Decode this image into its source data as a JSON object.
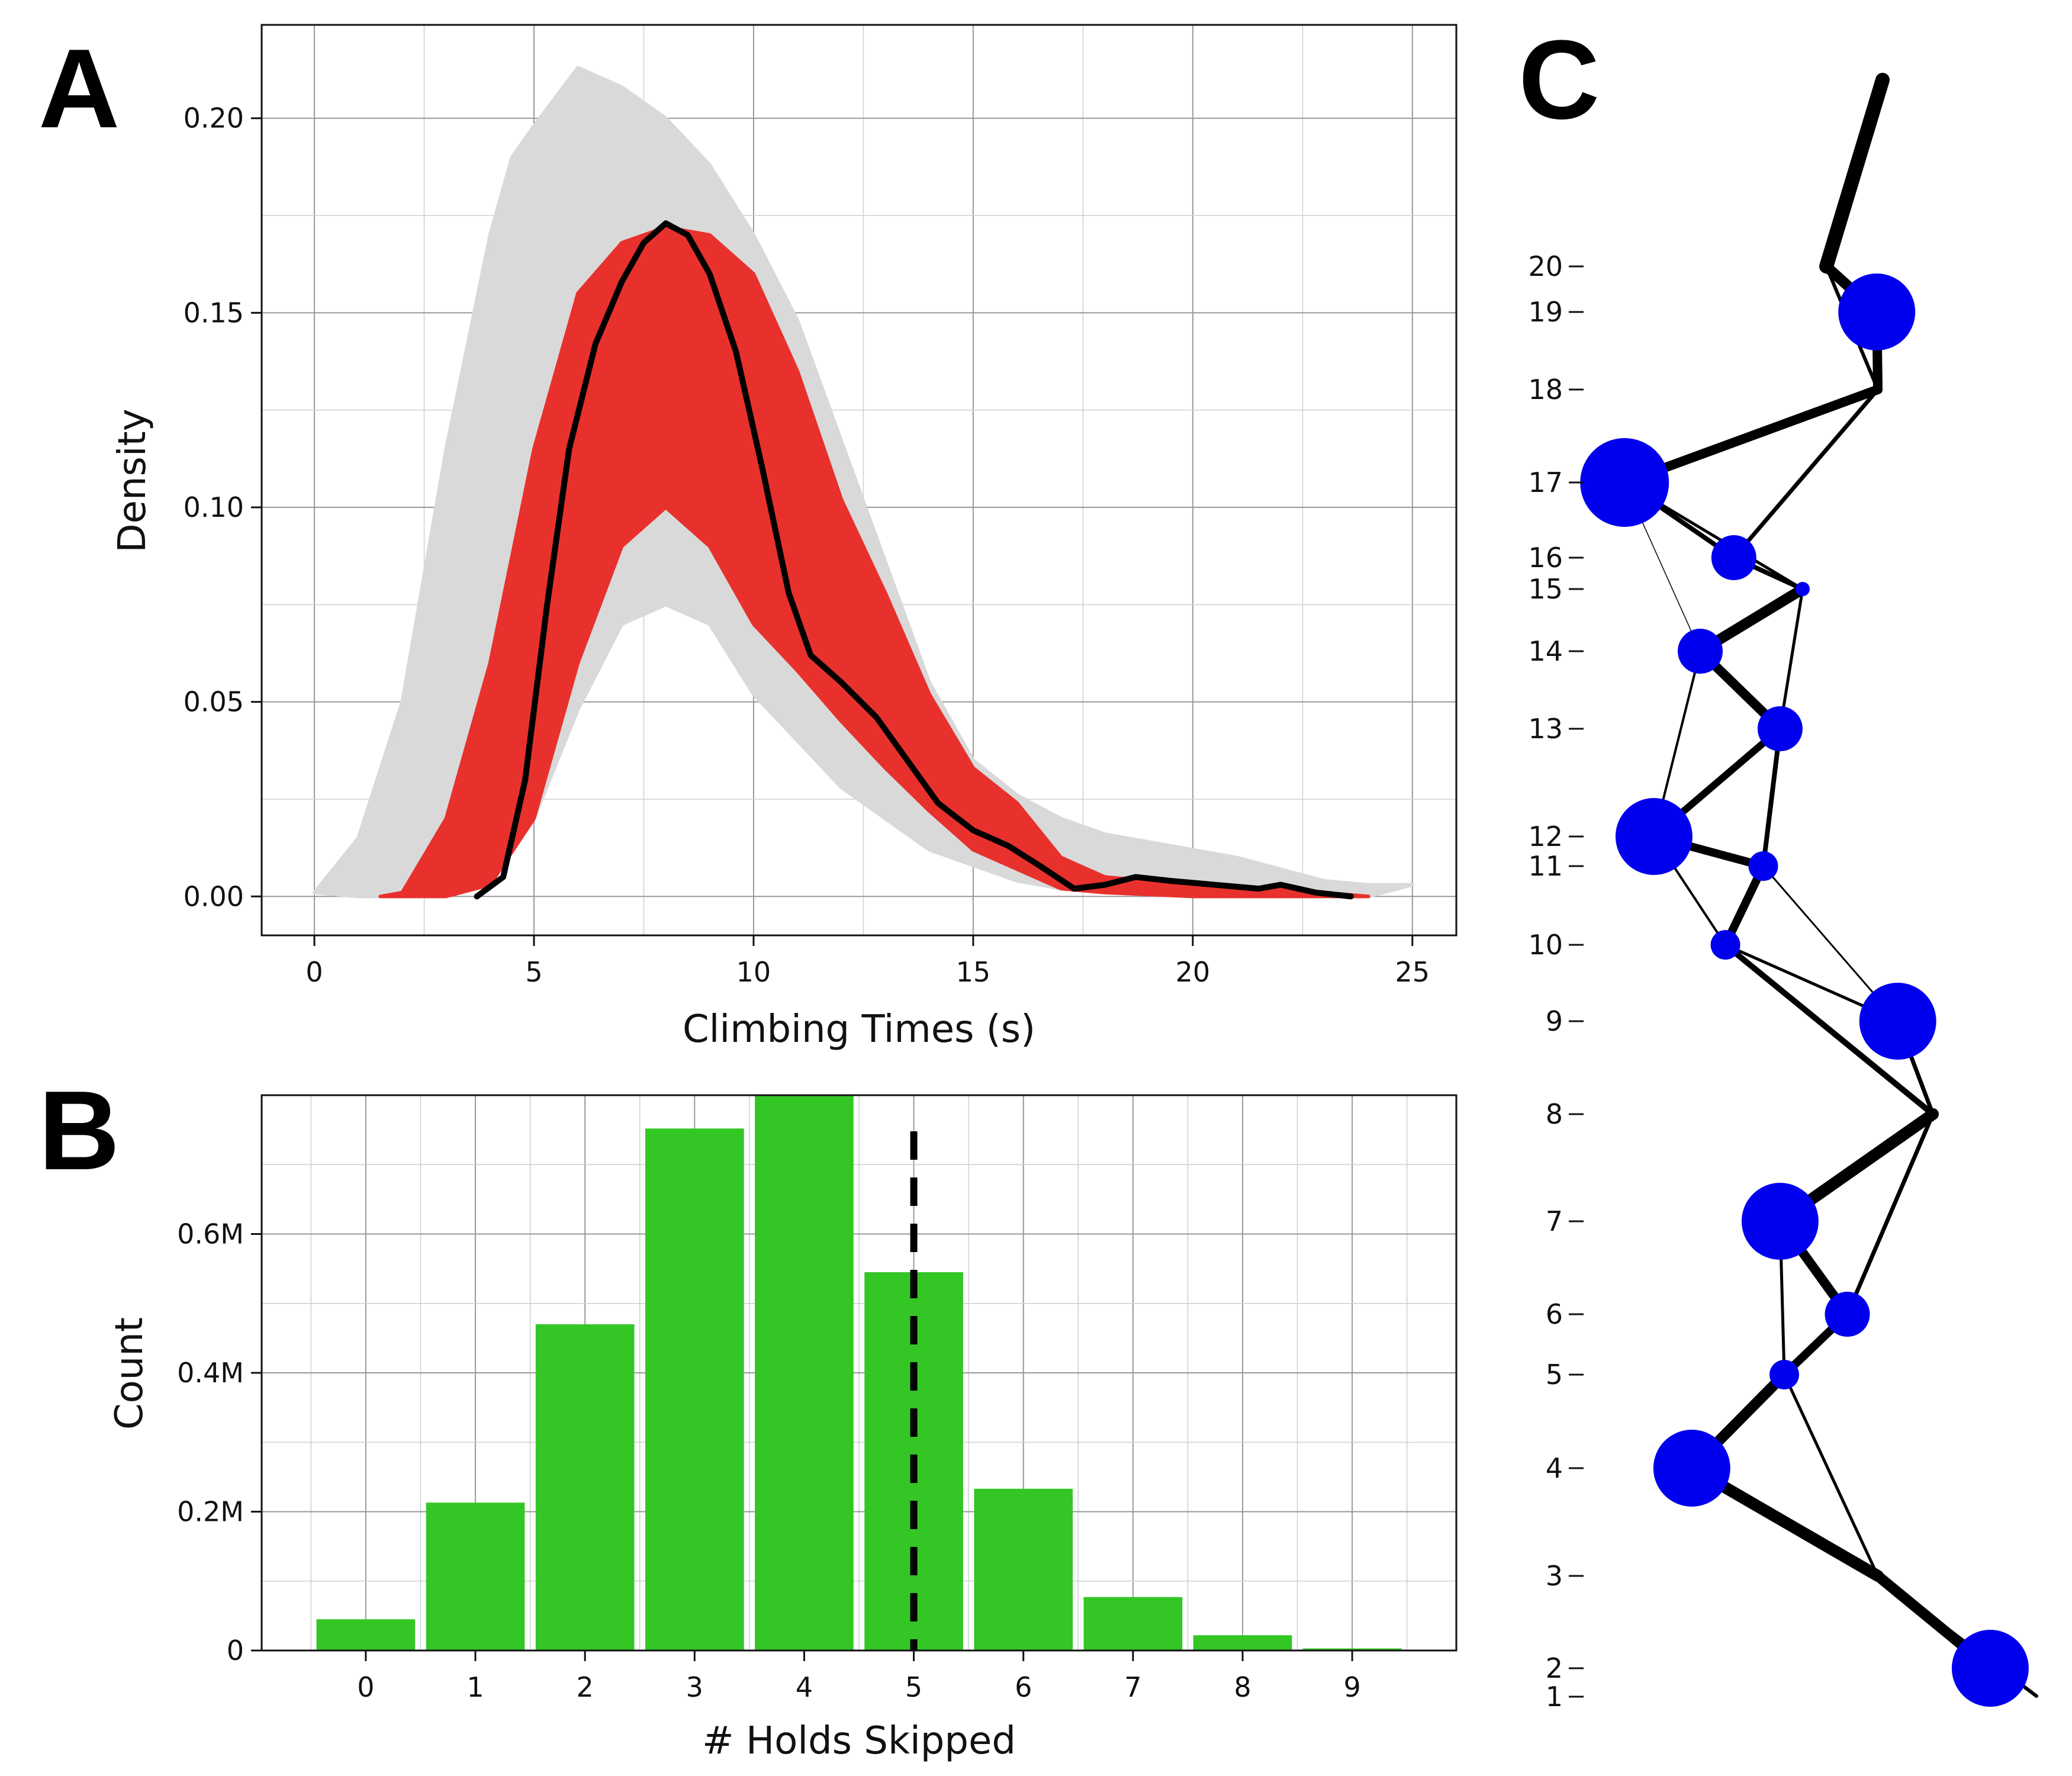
{
  "panels": {
    "a": "A",
    "b": "B",
    "c": "C"
  },
  "colors": {
    "grey": "#d9d9d9",
    "red": "#e8312d",
    "black": "#000000",
    "green": "#33c625",
    "blue": "#0000ee"
  },
  "chart_data": [
    {
      "type": "line",
      "panel": "A",
      "xlabel": "Climbing Times (s)",
      "ylabel": "Density",
      "xlim": [
        -1.2,
        26
      ],
      "ylim": [
        -0.01,
        0.224
      ],
      "x_ticks": [
        "0",
        "5",
        "10",
        "15",
        "20",
        "25"
      ],
      "y_ticks": [
        "0.00",
        "0.05",
        "0.10",
        "0.15",
        "0.20"
      ],
      "grid": true,
      "grey_envelope": {
        "upper": [
          [
            0,
            0.001
          ],
          [
            1,
            0.015
          ],
          [
            2,
            0.05
          ],
          [
            3,
            0.115
          ],
          [
            4,
            0.17
          ],
          [
            4.5,
            0.19
          ],
          [
            5,
            0.198
          ],
          [
            6,
            0.213
          ],
          [
            7,
            0.208
          ],
          [
            8,
            0.2
          ],
          [
            9,
            0.188
          ],
          [
            10,
            0.17
          ],
          [
            11,
            0.148
          ],
          [
            12,
            0.117
          ],
          [
            13,
            0.086
          ],
          [
            14,
            0.055
          ],
          [
            15,
            0.035
          ],
          [
            16,
            0.026
          ],
          [
            17,
            0.02
          ],
          [
            18,
            0.016
          ],
          [
            19,
            0.014
          ],
          [
            20,
            0.012
          ],
          [
            21,
            0.01
          ],
          [
            22,
            0.007
          ],
          [
            23,
            0.004
          ],
          [
            24,
            0.003
          ],
          [
            25,
            0.003
          ]
        ],
        "lower": [
          [
            1,
            0
          ],
          [
            2,
            0
          ],
          [
            3,
            0.001
          ],
          [
            4,
            0.004
          ],
          [
            5,
            0.02
          ],
          [
            6,
            0.048
          ],
          [
            7,
            0.07
          ],
          [
            8,
            0.075
          ],
          [
            9,
            0.07
          ],
          [
            10,
            0.052
          ],
          [
            11,
            0.04
          ],
          [
            12,
            0.028
          ],
          [
            13,
            0.02
          ],
          [
            14,
            0.012
          ],
          [
            15,
            0.008
          ],
          [
            16,
            0.004
          ],
          [
            17,
            0.002
          ],
          [
            18,
            0.001
          ],
          [
            20,
            0.0
          ],
          [
            22,
            0.0
          ],
          [
            24,
            0.0
          ]
        ]
      },
      "red_envelope": {
        "upper": [
          [
            1.5,
            0
          ],
          [
            2,
            0.001
          ],
          [
            3,
            0.02
          ],
          [
            4,
            0.06
          ],
          [
            5,
            0.115
          ],
          [
            6,
            0.155
          ],
          [
            7,
            0.168
          ],
          [
            8,
            0.172
          ],
          [
            9,
            0.17
          ],
          [
            10,
            0.16
          ],
          [
            11,
            0.135
          ],
          [
            12,
            0.102
          ],
          [
            13,
            0.078
          ],
          [
            14,
            0.052
          ],
          [
            15,
            0.033
          ],
          [
            16,
            0.024
          ],
          [
            17,
            0.01
          ],
          [
            18,
            0.005
          ],
          [
            19,
            0.004
          ],
          [
            20,
            0.003
          ],
          [
            21,
            0.002
          ],
          [
            22,
            0.002
          ],
          [
            23,
            0.001
          ],
          [
            24,
            0
          ]
        ],
        "lower": [
          [
            2.5,
            0
          ],
          [
            3,
            0.0
          ],
          [
            4,
            0.003
          ],
          [
            5,
            0.02
          ],
          [
            6,
            0.06
          ],
          [
            7,
            0.09
          ],
          [
            8,
            0.1
          ],
          [
            9,
            0.09
          ],
          [
            10,
            0.07
          ],
          [
            11,
            0.058
          ],
          [
            12,
            0.045
          ],
          [
            13,
            0.033
          ],
          [
            14,
            0.022
          ],
          [
            15,
            0.012
          ],
          [
            16,
            0.007
          ],
          [
            17,
            0.002
          ],
          [
            18,
            0.001
          ],
          [
            20,
            0
          ],
          [
            24,
            0
          ]
        ]
      },
      "series": [
        {
          "values": [
            [
              3.7,
              0
            ],
            [
              4.3,
              0.005
            ],
            [
              4.8,
              0.03
            ],
            [
              5.3,
              0.075
            ],
            [
              5.8,
              0.115
            ],
            [
              6.4,
              0.142
            ],
            [
              7.0,
              0.158
            ],
            [
              7.5,
              0.168
            ],
            [
              8.0,
              0.173
            ],
            [
              8.5,
              0.17
            ],
            [
              9.0,
              0.16
            ],
            [
              9.6,
              0.14
            ],
            [
              10.2,
              0.11
            ],
            [
              10.8,
              0.078
            ],
            [
              11.3,
              0.062
            ],
            [
              12.0,
              0.055
            ],
            [
              12.8,
              0.046
            ],
            [
              13.5,
              0.035
            ],
            [
              14.2,
              0.024
            ],
            [
              15.0,
              0.017
            ],
            [
              15.8,
              0.013
            ],
            [
              16.5,
              0.008
            ],
            [
              17.3,
              0.002
            ],
            [
              18.0,
              0.003
            ],
            [
              18.7,
              0.005
            ],
            [
              19.5,
              0.004
            ],
            [
              20.5,
              0.003
            ],
            [
              21.5,
              0.002
            ],
            [
              22.0,
              0.003
            ],
            [
              22.8,
              0.001
            ],
            [
              23.6,
              0
            ]
          ]
        }
      ]
    },
    {
      "type": "bar",
      "panel": "B",
      "xlabel": "# Holds Skipped",
      "ylabel": "Count",
      "categories": [
        "0",
        "1",
        "2",
        "3",
        "4",
        "5",
        "6",
        "7",
        "8",
        "9"
      ],
      "values": [
        45000,
        213000,
        470000,
        752000,
        803000,
        545000,
        233000,
        77000,
        22000,
        3000
      ],
      "ylim": [
        0,
        800000
      ],
      "y_ticks": [
        "0",
        "0.2M",
        "0.4M",
        "0.6M"
      ],
      "reference_line_x": 5,
      "grid": true
    },
    {
      "type": "graph",
      "panel": "C",
      "y_ticks": [
        "1",
        "2",
        "3",
        "4",
        "5",
        "6",
        "7",
        "8",
        "9",
        "10",
        "11",
        "12",
        "13",
        "14",
        "15",
        "16",
        "17",
        "18",
        "19",
        "20"
      ],
      "nodes": [
        {
          "hold": 2,
          "side": 0.89,
          "size": 3
        },
        {
          "hold": 4,
          "side": 0.18,
          "size": 3
        },
        {
          "hold": 5,
          "side": 0.4,
          "size": 1
        },
        {
          "hold": 6,
          "side": 0.55,
          "size": 2
        },
        {
          "hold": 7,
          "side": 0.39,
          "size": 3
        },
        {
          "hold": 9,
          "side": 0.67,
          "size": 3
        },
        {
          "hold": 10,
          "side": 0.26,
          "size": 1
        },
        {
          "hold": 11,
          "side": 0.35,
          "size": 1
        },
        {
          "hold": 12,
          "side": 0.09,
          "size": 3
        },
        {
          "hold": 13,
          "side": 0.39,
          "size": 2
        },
        {
          "hold": 14,
          "side": 0.2,
          "size": 2
        },
        {
          "hold": 16,
          "side": 0.28,
          "size": 2
        },
        {
          "hold": 17,
          "side": 0.02,
          "size": 4
        },
        {
          "hold": 19,
          "side": 0.62,
          "size": 3
        }
      ]
    }
  ]
}
